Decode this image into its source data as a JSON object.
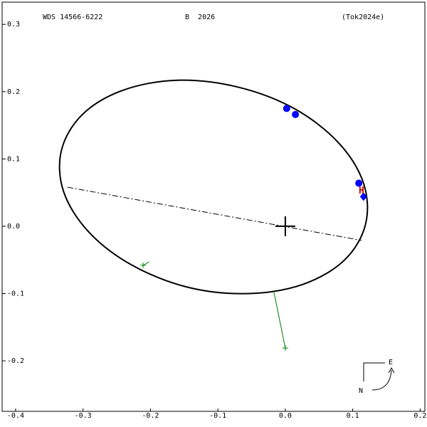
{
  "chart_data": {
    "type": "orbit",
    "title": "WDS 14566-6222",
    "subtitle": "B  2026",
    "reference": "(Tok2024e)",
    "xlim": [
      -0.42,
      0.207
    ],
    "ylim": [
      -0.275,
      0.333
    ],
    "xticks": [
      -0.4,
      -0.3,
      -0.2,
      -0.1,
      {
        "value": 0,
        "label": "0.0"
      },
      0.1,
      0.2
    ],
    "yticks": [
      0.3,
      0.2,
      0.1,
      {
        "value": 0,
        "label": "0.0"
      },
      -0.1,
      -0.2
    ],
    "orbit": {
      "color": "#000000",
      "x": [
        0.119,
        0.088,
        0.027,
        -0.054,
        -0.143,
        -0.227,
        -0.292,
        -0.329,
        -0.332,
        -0.301,
        -0.241,
        -0.16,
        -0.071,
        0.013,
        0.079,
        0.116
      ],
      "y": [
        0.003,
        -0.05,
        -0.086,
        -0.1,
        -0.091,
        -0.058,
        -0.008,
        0.052,
        0.113,
        0.166,
        0.202,
        0.217,
        0.207,
        0.175,
        0.124,
        0.064
      ]
    },
    "line_of_nodes": {
      "x": [
        -0.323,
        0.113
      ],
      "y": [
        0.058,
        -0.021
      ]
    },
    "observations": {
      "color": "#0000ff",
      "x": [
        0.002,
        0.015,
        0.109
      ],
      "y": [
        0.175,
        0.166,
        0.064
      ]
    },
    "diamond": {
      "color": "#0000ff",
      "x": [
        0.116
      ],
      "y": [
        0.044
      ]
    },
    "highlight": {
      "label": "H",
      "color": "#cc0000",
      "x": 0.113,
      "y": 0.052
    },
    "residuals": {
      "color": "#008000",
      "x": [
        -0.211,
        0.0
      ],
      "y": [
        -0.058,
        -0.181
      ],
      "x_end": [
        -0.202,
        -0.017
      ],
      "y_end": [
        -0.053,
        -0.097
      ]
    },
    "compass": {
      "east": "E",
      "north": "N"
    }
  }
}
